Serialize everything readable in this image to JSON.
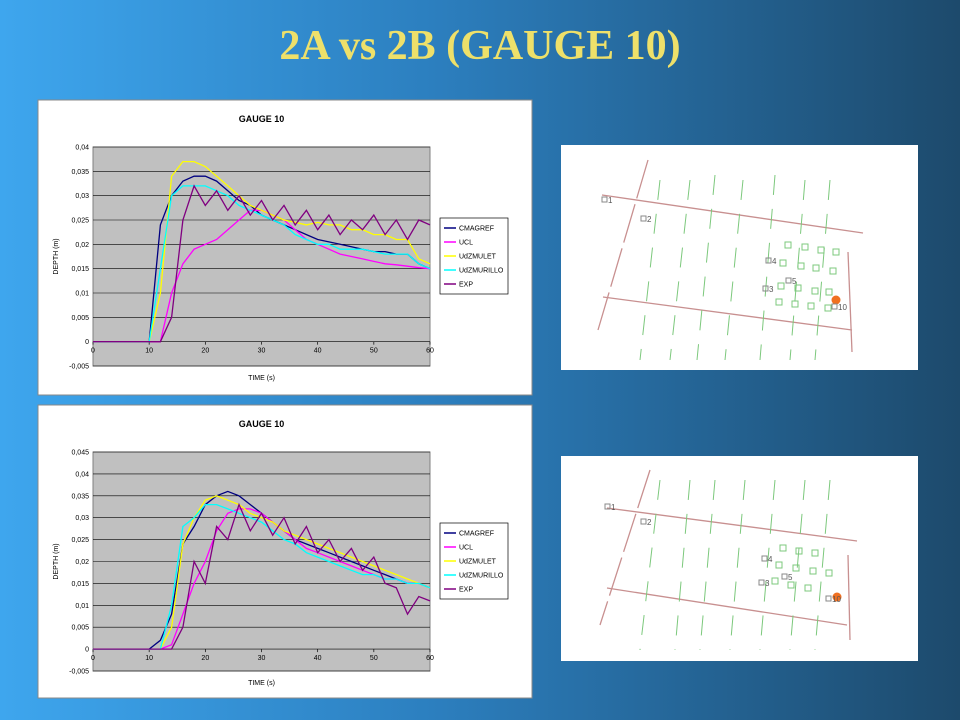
{
  "title": "2A vs 2B  (GAUGE 10)",
  "chart_data": [
    {
      "type": "line",
      "title": "GAUGE 10",
      "x_label": "TIME (s)",
      "y_label": "DEPTH (m)",
      "x": [
        0,
        2,
        4,
        6,
        8,
        10,
        12,
        14,
        16,
        18,
        20,
        22,
        24,
        26,
        28,
        30,
        32,
        34,
        36,
        38,
        40,
        42,
        44,
        46,
        48,
        50,
        52,
        54,
        56,
        58,
        60
      ],
      "xlim": [
        0,
        60
      ],
      "xticks": [
        0,
        10,
        20,
        30,
        40,
        50,
        60
      ],
      "ylim": [
        -0.005,
        0.04
      ],
      "yticks": [
        {
          "value": -0.005,
          "label": "-0,005"
        },
        0,
        {
          "value": 0.005,
          "label": "0,005"
        },
        {
          "value": 0.01,
          "label": "0,01"
        },
        {
          "value": 0.015,
          "label": "0,015"
        },
        {
          "value": 0.02,
          "label": "0,02"
        },
        {
          "value": 0.025,
          "label": "0,025"
        },
        {
          "value": 0.03,
          "label": "0,03"
        },
        {
          "value": 0.035,
          "label": "0,035"
        },
        {
          "value": 0.04,
          "label": "0,04"
        }
      ],
      "grid": true,
      "legend": "right",
      "series": [
        {
          "name": "CMAGREF",
          "color": "#000080",
          "values": [
            0,
            0,
            0,
            0,
            0,
            0,
            0.024,
            0.03,
            0.033,
            0.034,
            0.034,
            0.033,
            0.031,
            0.029,
            0.028,
            0.026,
            0.025,
            0.024,
            0.023,
            0.022,
            0.021,
            0.0205,
            0.02,
            0.0195,
            0.019,
            0.0185,
            0.0185,
            0.018,
            0.018,
            0.016,
            0.015
          ]
        },
        {
          "name": "UCL",
          "color": "#ff00ff",
          "values": [
            0,
            0,
            0,
            0,
            0,
            0,
            0,
            0.01,
            0.016,
            0.019,
            0.02,
            0.021,
            0.023,
            0.025,
            0.027,
            0.027,
            0.026,
            0.025,
            0.023,
            0.021,
            0.02,
            0.019,
            0.018,
            0.0175,
            0.017,
            0.0165,
            0.016,
            0.0158,
            0.0155,
            0.0152,
            0.015
          ]
        },
        {
          "name": "UdZMULET",
          "color": "#ffff00",
          "values": [
            0,
            0,
            0,
            0,
            0,
            0,
            0.01,
            0.034,
            0.037,
            0.037,
            0.036,
            0.034,
            0.032,
            0.03,
            0.028,
            0.027,
            0.026,
            0.025,
            0.0245,
            0.024,
            0.0245,
            0.024,
            0.024,
            0.023,
            0.023,
            0.022,
            0.022,
            0.021,
            0.021,
            0.017,
            0.016
          ]
        },
        {
          "name": "UdZMURILLO",
          "color": "#00ffff",
          "values": [
            0,
            0,
            0,
            0,
            0,
            0,
            0.015,
            0.03,
            0.032,
            0.032,
            0.032,
            0.031,
            0.03,
            0.028,
            0.027,
            0.026,
            0.025,
            0.024,
            0.022,
            0.021,
            0.02,
            0.02,
            0.019,
            0.019,
            0.019,
            0.0185,
            0.018,
            0.018,
            0.018,
            0.016,
            0.015
          ]
        },
        {
          "name": "EXP",
          "color": "#800080",
          "values": [
            0,
            0,
            0,
            0,
            0,
            0,
            0,
            0.005,
            0.025,
            0.032,
            0.028,
            0.031,
            0.027,
            0.03,
            0.026,
            0.029,
            0.025,
            0.028,
            0.024,
            0.027,
            0.023,
            0.026,
            0.022,
            0.025,
            0.023,
            0.026,
            0.022,
            0.025,
            0.021,
            0.025,
            0.024
          ]
        }
      ]
    },
    {
      "type": "line",
      "title": "GAUGE 10",
      "x_label": "TIME (s)",
      "y_label": "DEPTH (m)",
      "x": [
        0,
        2,
        4,
        6,
        8,
        10,
        12,
        14,
        16,
        18,
        20,
        22,
        24,
        26,
        28,
        30,
        32,
        34,
        36,
        38,
        40,
        42,
        44,
        46,
        48,
        50,
        52,
        54,
        56,
        58,
        60
      ],
      "xlim": [
        0,
        60
      ],
      "xticks": [
        0,
        10,
        20,
        30,
        40,
        50,
        60
      ],
      "ylim": [
        -0.005,
        0.045
      ],
      "yticks": [
        {
          "value": -0.005,
          "label": "-0,005"
        },
        0,
        {
          "value": 0.005,
          "label": "0,005"
        },
        {
          "value": 0.01,
          "label": "0,01"
        },
        {
          "value": 0.015,
          "label": "0,015"
        },
        {
          "value": 0.02,
          "label": "0,02"
        },
        {
          "value": 0.025,
          "label": "0,025"
        },
        {
          "value": 0.03,
          "label": "0,03"
        },
        {
          "value": 0.035,
          "label": "0,035"
        },
        {
          "value": 0.04,
          "label": "0,04"
        },
        {
          "value": 0.045,
          "label": "0,045"
        }
      ],
      "grid": true,
      "legend": "right",
      "series": [
        {
          "name": "CMAGREF",
          "color": "#000080",
          "values": [
            0,
            0,
            0,
            0,
            0,
            0,
            0.002,
            0.008,
            0.024,
            0.028,
            0.033,
            0.035,
            0.036,
            0.035,
            0.033,
            0.031,
            0.029,
            0.027,
            0.025,
            0.024,
            0.023,
            0.022,
            0.021,
            0.02,
            0.019,
            0.018,
            0.017,
            0.016,
            0.015,
            0.015,
            0.014
          ]
        },
        {
          "name": "UCL",
          "color": "#ff00ff",
          "values": [
            0,
            0,
            0,
            0,
            0,
            0,
            0,
            0.001,
            0.008,
            0.015,
            0.02,
            0.027,
            0.031,
            0.032,
            0.032,
            0.031,
            0.029,
            0.027,
            0.025,
            0.023,
            0.022,
            0.021,
            0.02,
            0.019,
            0.018,
            0.017,
            0.016,
            0.016,
            0.015,
            0.015,
            0.014
          ]
        },
        {
          "name": "UdZMULET",
          "color": "#ffff00",
          "values": [
            0,
            0,
            0,
            0,
            0,
            0,
            0,
            0.005,
            0.024,
            0.03,
            0.034,
            0.035,
            0.034,
            0.033,
            0.031,
            0.03,
            0.029,
            0.027,
            0.026,
            0.025,
            0.024,
            0.023,
            0.022,
            0.021,
            0.02,
            0.019,
            0.018,
            0.017,
            0.016,
            0.015,
            0.014
          ]
        },
        {
          "name": "UdZMURILLO",
          "color": "#00ffff",
          "values": [
            0,
            0,
            0,
            0,
            0,
            0,
            0,
            0.01,
            0.028,
            0.03,
            0.033,
            0.033,
            0.032,
            0.031,
            0.03,
            0.029,
            0.027,
            0.025,
            0.024,
            0.022,
            0.021,
            0.02,
            0.019,
            0.018,
            0.017,
            0.017,
            0.016,
            0.016,
            0.015,
            0.015,
            0.014
          ]
        },
        {
          "name": "EXP",
          "color": "#800080",
          "values": [
            0,
            0,
            0,
            0,
            0,
            0,
            0,
            0,
            0.005,
            0.02,
            0.015,
            0.028,
            0.025,
            0.033,
            0.027,
            0.031,
            0.026,
            0.03,
            0.024,
            0.028,
            0.022,
            0.025,
            0.02,
            0.023,
            0.018,
            0.021,
            0.015,
            0.014,
            0.008,
            0.012,
            0.011
          ]
        }
      ]
    }
  ],
  "maps": [
    {
      "labels": [
        "1",
        "2",
        "3",
        "4",
        "5",
        "10"
      ]
    },
    {
      "labels": [
        "1",
        "2",
        "3",
        "4",
        "5",
        "10"
      ]
    }
  ]
}
